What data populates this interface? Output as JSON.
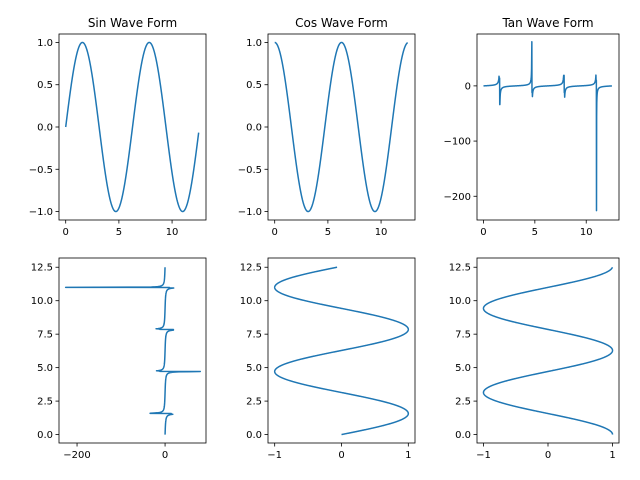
{
  "chart_data": [
    {
      "type": "line",
      "kind": "sin",
      "orient": "xy",
      "title": "Sin Wave Form",
      "xlabel": "",
      "ylabel": "",
      "xlim": [
        -0.63,
        13.19
      ],
      "ylim": [
        -1.1,
        1.1
      ],
      "xticks": [
        0,
        5,
        10
      ],
      "xtick_labels": [
        "0",
        "5",
        "10"
      ],
      "yticks": [
        -1.0,
        -0.5,
        0.0,
        0.5,
        1.0
      ],
      "ytick_labels": [
        "−1.0",
        "−0.5",
        "0.0",
        "0.5",
        "1.0"
      ],
      "series": [
        {
          "color": "#1f77b4",
          "x_range": [
            0,
            12.5
          ],
          "y_formula": "sin(x)"
        }
      ]
    },
    {
      "type": "line",
      "kind": "cos",
      "orient": "xy",
      "title": "Cos Wave Form",
      "xlabel": "",
      "ylabel": "",
      "xlim": [
        -0.63,
        13.19
      ],
      "ylim": [
        -1.1,
        1.1
      ],
      "xticks": [
        0,
        5,
        10
      ],
      "xtick_labels": [
        "0",
        "5",
        "10"
      ],
      "yticks": [
        -1.0,
        -0.5,
        0.0,
        0.5,
        1.0
      ],
      "ytick_labels": [
        "−1.0",
        "−0.5",
        "0.0",
        "0.5",
        "1.0"
      ],
      "series": [
        {
          "color": "#1f77b4",
          "x_range": [
            0,
            12.5
          ],
          "y_formula": "cos(x)"
        }
      ]
    },
    {
      "type": "line",
      "kind": "tan",
      "orient": "xy",
      "title": "Tan Wave Form",
      "xlabel": "",
      "ylabel": "",
      "xlim": [
        -0.63,
        13.19
      ],
      "ylim": [
        -243,
        94
      ],
      "xticks": [
        0,
        5,
        10
      ],
      "xtick_labels": [
        "0",
        "5",
        "10"
      ],
      "yticks": [
        0,
        -100,
        -200
      ],
      "ytick_labels": [
        "0",
        "−100",
        "−200"
      ],
      "series": [
        {
          "color": "#1f77b4",
          "x_range": [
            0,
            12.5
          ],
          "y_formula": "tan(x)",
          "spikes": [
            [
              1.57,
              14,
              -34
            ],
            [
              4.71,
              80,
              -12
            ],
            [
              7.85,
              19,
              -12
            ],
            [
              11.0,
              10,
              -226
            ]
          ]
        }
      ]
    },
    {
      "type": "line",
      "kind": "tan",
      "orient": "yx",
      "title": "",
      "xlabel": "",
      "ylabel": "",
      "xlim": [
        -241,
        93
      ],
      "ylim": [
        -0.63,
        13.19
      ],
      "xticks": [
        -200,
        0
      ],
      "xtick_labels": [
        "−200",
        "0"
      ],
      "yticks": [
        0.0,
        2.5,
        5.0,
        7.5,
        10.0,
        12.5
      ],
      "ytick_labels": [
        "0.0",
        "2.5",
        "5.0",
        "7.5",
        "10.0",
        "12.5"
      ],
      "series": [
        {
          "color": "#1f77b4",
          "y_range": [
            0,
            12.5
          ],
          "x_formula": "tan(y)",
          "spikes": [
            [
              1.57,
              14,
              -34
            ],
            [
              4.71,
              80,
              -12
            ],
            [
              7.85,
              19,
              -12
            ],
            [
              11.0,
              10,
              -226
            ]
          ]
        }
      ]
    },
    {
      "type": "line",
      "kind": "sin",
      "orient": "yx",
      "title": "",
      "xlabel": "",
      "ylabel": "",
      "xlim": [
        -1.1,
        1.1
      ],
      "ylim": [
        -0.63,
        13.19
      ],
      "xticks": [
        -1,
        0,
        1
      ],
      "xtick_labels": [
        "−1",
        "0",
        "1"
      ],
      "yticks": [
        0.0,
        2.5,
        5.0,
        7.5,
        10.0,
        12.5
      ],
      "ytick_labels": [
        "0.0",
        "2.5",
        "5.0",
        "7.5",
        "10.0",
        "12.5"
      ],
      "series": [
        {
          "color": "#1f77b4",
          "y_range": [
            0,
            12.5
          ],
          "x_formula": "sin(y)"
        }
      ]
    },
    {
      "type": "line",
      "kind": "cos",
      "orient": "yx",
      "title": "",
      "xlabel": "",
      "ylabel": "",
      "xlim": [
        -1.1,
        1.1
      ],
      "ylim": [
        -0.63,
        13.19
      ],
      "xticks": [
        -1,
        0,
        1
      ],
      "xtick_labels": [
        "−1",
        "0",
        "1"
      ],
      "yticks": [
        0.0,
        2.5,
        5.0,
        7.5,
        10.0,
        12.5
      ],
      "ytick_labels": [
        "0.0",
        "2.5",
        "5.0",
        "7.5",
        "10.0",
        "12.5"
      ],
      "series": [
        {
          "color": "#1f77b4",
          "y_range": [
            0,
            12.5
          ],
          "x_formula": "cos(y)"
        }
      ]
    }
  ]
}
